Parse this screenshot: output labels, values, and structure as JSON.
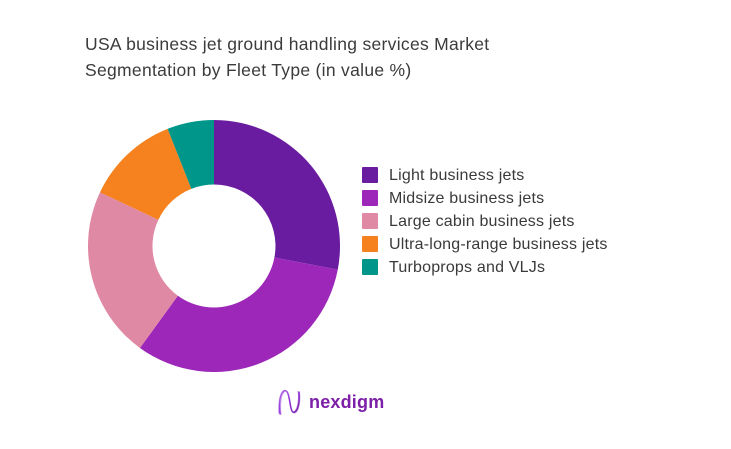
{
  "title": {
    "lines": [
      "USA business jet ground handling services Market",
      "Segmentation by Fleet Type (in value %)"
    ]
  },
  "chart_data": {
    "type": "pie",
    "subtype": "donut",
    "title": "USA business jet ground handling services Market Segmentation by Fleet Type (in value %)",
    "categories": [
      "Light business jets",
      "Midsize business jets",
      "Large cabin business jets",
      "Ultra-long-range business jets",
      "Turboprops and VLJs"
    ],
    "values": [
      28,
      32,
      22,
      12,
      6
    ],
    "unit": "%",
    "colors": [
      "#6a1ca0",
      "#9c27b8",
      "#e089a5",
      "#f5821f",
      "#00968a"
    ],
    "start_angle_deg": 0,
    "direction": "clockwise",
    "inner_radius_ratio": 0.488,
    "legend_position": "right",
    "data_labels": false,
    "background": "#ffffff"
  },
  "logo": {
    "text": "nexdigm",
    "brand_color": "#7d1fa8"
  }
}
